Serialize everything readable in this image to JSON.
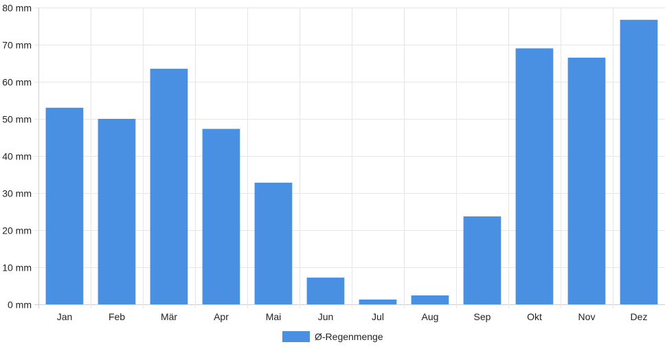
{
  "chart_data": {
    "type": "bar",
    "title": "",
    "xlabel": "",
    "ylabel": "",
    "y_unit": "mm",
    "ylim": [
      0,
      80
    ],
    "y_ticks": [
      0,
      10,
      20,
      30,
      40,
      50,
      60,
      70,
      80
    ],
    "y_tick_labels": [
      "0 mm",
      "10 mm",
      "20 mm",
      "30 mm",
      "40 mm",
      "50 mm",
      "60 mm",
      "70 mm",
      "80 mm"
    ],
    "categories": [
      "Jan",
      "Feb",
      "Mär",
      "Apr",
      "Mai",
      "Jun",
      "Jul",
      "Aug",
      "Sep",
      "Okt",
      "Nov",
      "Dez"
    ],
    "series": [
      {
        "name": "Ø-Regenmenge",
        "color": "#4a90e2",
        "values": [
          53,
          50,
          63.5,
          47.3,
          32.8,
          7.2,
          1.3,
          2.4,
          23.7,
          69,
          66.5,
          76.7
        ]
      }
    ],
    "grid": true,
    "legend_position": "bottom-center"
  }
}
